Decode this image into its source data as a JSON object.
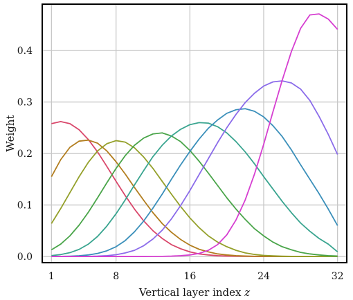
{
  "chart_data": {
    "type": "line",
    "xlabel": "Vertical layer index ",
    "xlabel_var": "z",
    "ylabel": "Weight",
    "xlim": [
      0,
      33
    ],
    "ylim": [
      -0.012,
      0.49
    ],
    "grid": true,
    "x_ticks": [
      1,
      8,
      16,
      24,
      32
    ],
    "x_tick_labels": [
      "1",
      "8",
      "16",
      "24",
      "32"
    ],
    "y_ticks": [
      0.0,
      0.1,
      0.2,
      0.3,
      0.4
    ],
    "y_tick_labels": [
      "0.0",
      "0.1",
      "0.2",
      "0.3",
      "0.4"
    ],
    "x": [
      1,
      2,
      3,
      4,
      5,
      6,
      7,
      8,
      9,
      10,
      11,
      12,
      13,
      14,
      15,
      16,
      17,
      18,
      19,
      20,
      21,
      22,
      23,
      24,
      25,
      26,
      27,
      28,
      29,
      30,
      31,
      32
    ],
    "series": [
      {
        "color": "#d9476b",
        "values": [
          0.258,
          0.262,
          0.258,
          0.246,
          0.227,
          0.203,
          0.175,
          0.146,
          0.118,
          0.092,
          0.069,
          0.05,
          0.035,
          0.023,
          0.015,
          0.009,
          0.005,
          0.003,
          0.0015,
          0.0008,
          0.0004,
          0.0002,
          0.0001,
          0,
          0,
          0,
          0,
          0,
          0,
          0,
          0,
          0
        ]
      },
      {
        "color": "#b27d1e",
        "values": [
          0.155,
          0.188,
          0.212,
          0.224,
          0.226,
          0.22,
          0.205,
          0.184,
          0.16,
          0.134,
          0.109,
          0.085,
          0.064,
          0.047,
          0.033,
          0.022,
          0.014,
          0.009,
          0.005,
          0.003,
          0.0015,
          0.0008,
          0.0004,
          0.0002,
          0.0001,
          0,
          0,
          0,
          0,
          0,
          0,
          0
        ]
      },
      {
        "color": "#94a02a",
        "values": [
          0.064,
          0.093,
          0.124,
          0.155,
          0.183,
          0.205,
          0.219,
          0.225,
          0.222,
          0.211,
          0.193,
          0.171,
          0.146,
          0.121,
          0.097,
          0.075,
          0.056,
          0.04,
          0.028,
          0.019,
          0.012,
          0.007,
          0.004,
          0.002,
          0.0012,
          0.0006,
          0.0003,
          0.0001,
          0,
          0,
          0,
          0
        ]
      },
      {
        "color": "#4aa54a",
        "values": [
          0.013,
          0.024,
          0.04,
          0.061,
          0.086,
          0.114,
          0.143,
          0.171,
          0.196,
          0.216,
          0.23,
          0.238,
          0.24,
          0.234,
          0.223,
          0.206,
          0.185,
          0.162,
          0.138,
          0.114,
          0.092,
          0.072,
          0.054,
          0.04,
          0.028,
          0.019,
          0.013,
          0.008,
          0.005,
          0.003,
          0.0015,
          0.0008
        ]
      },
      {
        "color": "#3aa590",
        "values": [
          0.0017,
          0.0037,
          0.0074,
          0.0138,
          0.024,
          0.039,
          0.059,
          0.083,
          0.11,
          0.139,
          0.167,
          0.194,
          0.216,
          0.234,
          0.247,
          0.256,
          0.26,
          0.259,
          0.252,
          0.24,
          0.223,
          0.203,
          0.18,
          0.155,
          0.131,
          0.107,
          0.085,
          0.065,
          0.049,
          0.035,
          0.024,
          0.009
        ]
      },
      {
        "color": "#3a8fba",
        "values": [
          0.0001,
          0.0002,
          0.0006,
          0.0014,
          0.003,
          0.006,
          0.011,
          0.019,
          0.031,
          0.048,
          0.069,
          0.094,
          0.121,
          0.15,
          0.178,
          0.204,
          0.228,
          0.249,
          0.265,
          0.278,
          0.285,
          0.287,
          0.282,
          0.271,
          0.254,
          0.233,
          0.207,
          0.178,
          0.15,
          0.122,
          0.092,
          0.06
        ]
      },
      {
        "color": "#8b6cea",
        "values": [
          0,
          0,
          0,
          0.0001,
          0.0003,
          0.0007,
          0.0016,
          0.0034,
          0.007,
          0.012,
          0.021,
          0.034,
          0.051,
          0.073,
          0.099,
          0.128,
          0.159,
          0.19,
          0.221,
          0.25,
          0.276,
          0.299,
          0.317,
          0.331,
          0.339,
          0.341,
          0.337,
          0.325,
          0.303,
          0.272,
          0.237,
          0.198
        ]
      },
      {
        "color": "#d63fd1",
        "values": [
          0,
          0,
          0,
          0,
          0,
          0,
          0,
          0,
          0,
          0,
          0,
          0.0001,
          0.0003,
          0.0007,
          0.0015,
          0.003,
          0.006,
          0.012,
          0.023,
          0.042,
          0.071,
          0.11,
          0.16,
          0.218,
          0.281,
          0.342,
          0.398,
          0.443,
          0.469,
          0.471,
          0.461,
          0.441
        ]
      }
    ]
  }
}
